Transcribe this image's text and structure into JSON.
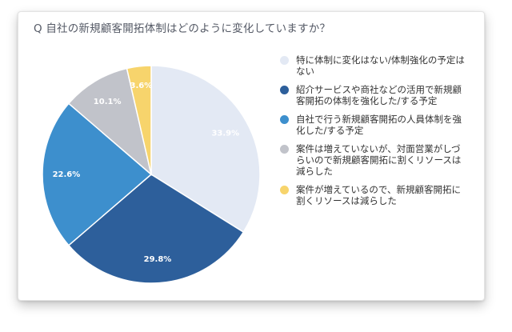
{
  "chart_data": {
    "type": "pie",
    "title": "Q 自社の新規顧客開拓体制はどのように変化していますか？",
    "slices": [
      {
        "label": "特に体制に変化はない/体制強化の予定はない",
        "value": 33.9,
        "display": "33.9%",
        "color": "#e3e9f4",
        "label_color": "#ffffff"
      },
      {
        "label": "紹介サービスや商社などの活用で新規顧客開拓の体制を強化した/する予定",
        "value": 29.8,
        "display": "29.8%",
        "color": "#2d5f9b",
        "label_color": "#ffffff"
      },
      {
        "label": "自社で行う新規顧客開拓の人員体制を強化した/する予定",
        "value": 22.6,
        "display": "22.6%",
        "color": "#3d8fcd",
        "label_color": "#ffffff"
      },
      {
        "label": "案件は増えていないが、対面営業がしづらいので新規顧客開拓に割くリソースは減らした",
        "value": 10.1,
        "display": "10.1%",
        "color": "#c1c3ca",
        "label_color": "#ffffff"
      },
      {
        "label": "案件が増えているので、新規顧客開拓に割くリソースは減らした",
        "value": 3.6,
        "display": "3.6%",
        "color": "#f7d46c",
        "label_color": "#ffffff"
      }
    ],
    "legend_position": "right"
  }
}
